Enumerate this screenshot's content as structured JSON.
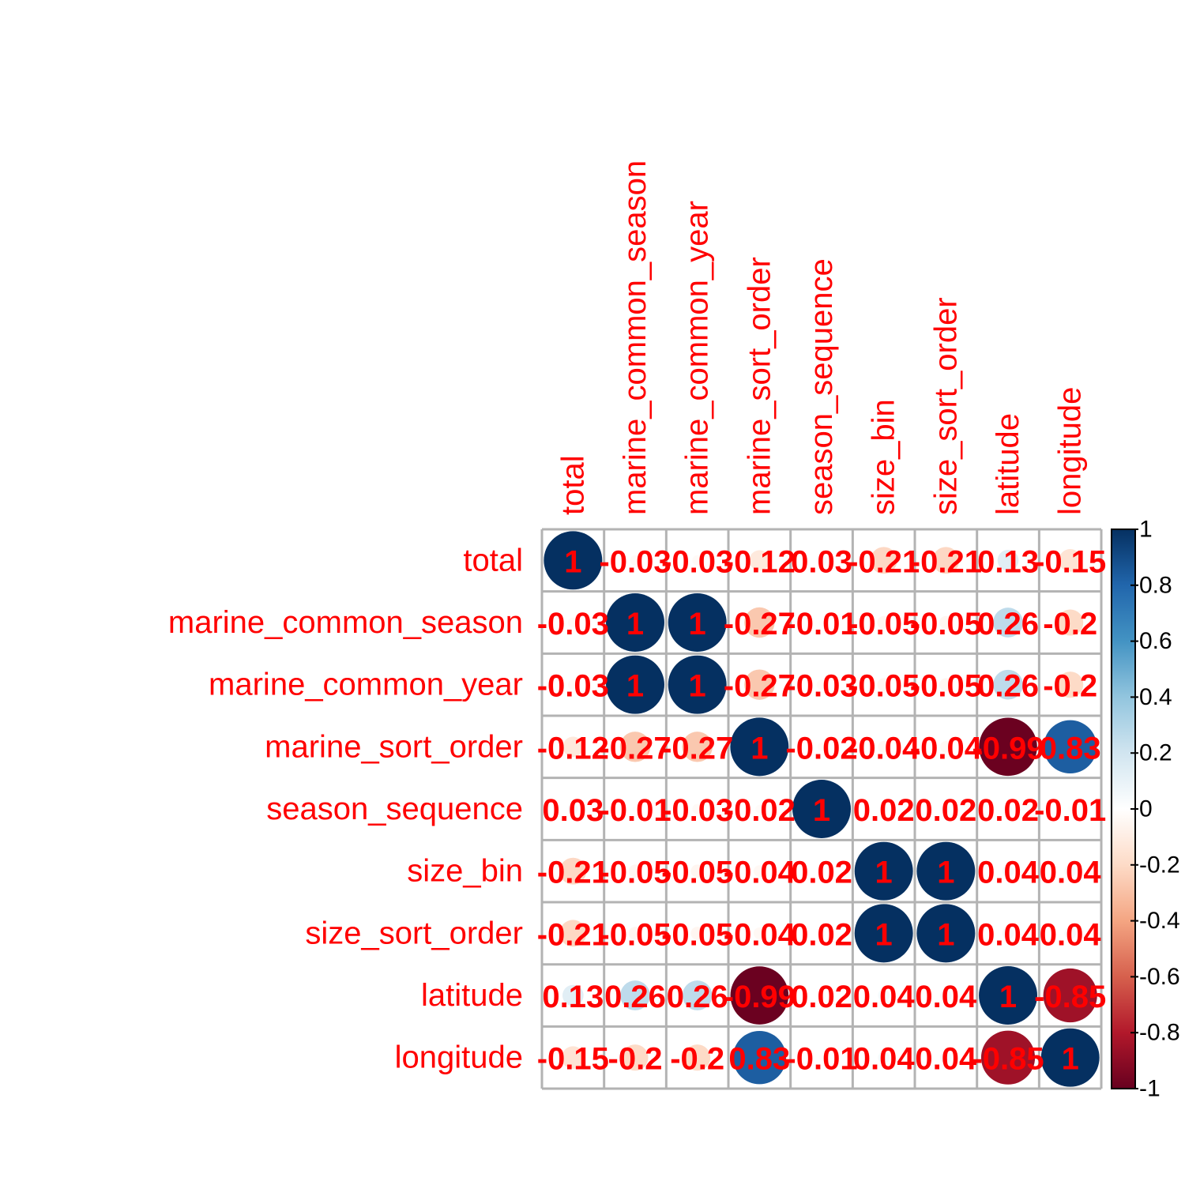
{
  "chart_data": {
    "type": "heatmap",
    "variables": [
      "total",
      "marine_common_season",
      "marine_common_year",
      "marine_sort_order",
      "season_sequence",
      "size_bin",
      "size_sort_order",
      "latitude",
      "longitude"
    ],
    "matrix": [
      [
        1,
        -0.03,
        -0.03,
        -0.12,
        0.03,
        -0.21,
        -0.21,
        0.13,
        -0.15
      ],
      [
        -0.03,
        1,
        1,
        -0.27,
        -0.01,
        -0.05,
        -0.05,
        0.26,
        -0.2
      ],
      [
        -0.03,
        1,
        1,
        -0.27,
        -0.03,
        -0.05,
        -0.05,
        0.26,
        -0.2
      ],
      [
        -0.12,
        -0.27,
        -0.27,
        1,
        -0.02,
        -0.04,
        -0.04,
        -0.99,
        0.83
      ],
      [
        0.03,
        -0.01,
        -0.03,
        -0.02,
        1,
        0.02,
        0.02,
        0.02,
        -0.01
      ],
      [
        -0.21,
        -0.05,
        -0.05,
        -0.04,
        0.02,
        1,
        1,
        0.04,
        0.04
      ],
      [
        -0.21,
        -0.05,
        -0.05,
        -0.04,
        0.02,
        1,
        1,
        0.04,
        0.04
      ],
      [
        0.13,
        0.26,
        0.26,
        -0.99,
        0.02,
        0.04,
        0.04,
        1,
        -0.85
      ],
      [
        -0.15,
        -0.2,
        -0.2,
        0.83,
        -0.01,
        0.04,
        0.04,
        -0.85,
        1
      ]
    ],
    "cell_labels": [
      [
        "1",
        "-0.03",
        "-0.03",
        "-0.12",
        "0.03",
        "-0.21",
        "-0.21",
        "0.13",
        "-0.15"
      ],
      [
        "-0.03",
        "1",
        "1",
        "-0.27",
        "-0.01",
        "-0.05",
        "-0.05",
        "0.26",
        "-0.2"
      ],
      [
        "-0.03",
        "1",
        "1",
        "-0.27",
        "-0.03",
        "-0.05",
        "-0.05",
        "0.26",
        "-0.2"
      ],
      [
        "-0.12",
        "-0.27",
        "-0.27",
        "1",
        "-0.02",
        "-0.04",
        "-0.04",
        "-0.99",
        "0.83"
      ],
      [
        "0.03",
        "-0.01",
        "-0.03",
        "-0.02",
        "1",
        "0.02",
        "0.02",
        "0.02",
        "-0.01"
      ],
      [
        "-0.21",
        "-0.05",
        "-0.05",
        "-0.04",
        "0.02",
        "1",
        "1",
        "0.04",
        "0.04"
      ],
      [
        "-0.21",
        "-0.05",
        "-0.05",
        "-0.04",
        "0.02",
        "1",
        "1",
        "0.04",
        "0.04"
      ],
      [
        "0.13",
        "0.26",
        "0.26",
        "-0.99",
        "0.02",
        "0.04",
        "0.04",
        "1",
        "-0.85"
      ],
      [
        "-0.15",
        "-0.2",
        "-0.2",
        "0.83",
        "-0.01",
        "0.04",
        "0.04",
        "-0.85",
        "1"
      ]
    ],
    "colorbar": {
      "range": [
        -1,
        1
      ],
      "ticks": [
        "1",
        "0.8",
        "0.6",
        "0.4",
        "0.2",
        "0",
        "-0.2",
        "-0.4",
        "-0.6",
        "-0.8",
        "-1"
      ]
    },
    "colors": {
      "label_text": "#ff0000",
      "grid": "#b3b3b3",
      "palette": [
        "#67001f",
        "#b2182b",
        "#d6604d",
        "#f4a582",
        "#fddbc7",
        "#ffffff",
        "#d1e5f0",
        "#92c5de",
        "#4393c3",
        "#2166ac",
        "#053061"
      ]
    }
  }
}
